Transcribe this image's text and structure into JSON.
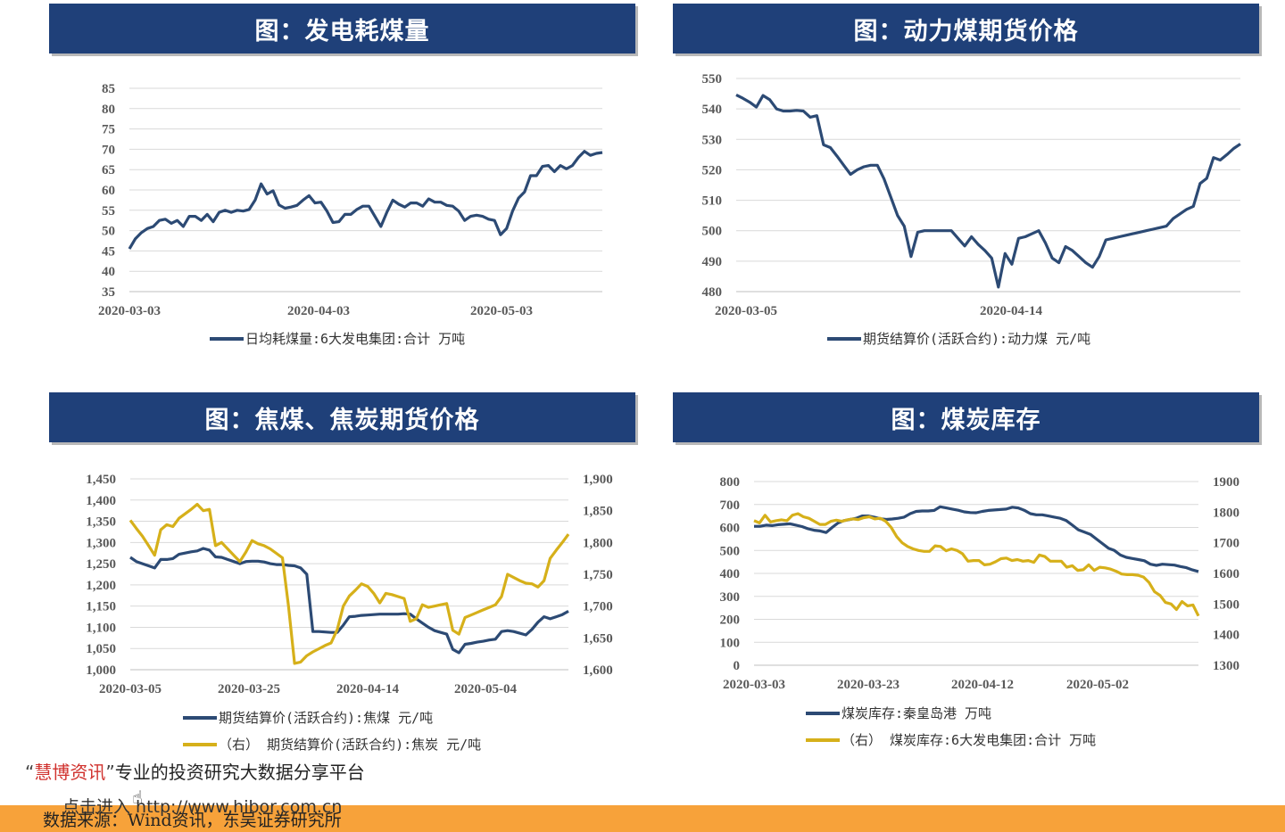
{
  "colors": {
    "header_bg": "#1f4079",
    "series_blue": "#2c4a74",
    "series_gold": "#d6b01a",
    "grid": "#d9d9d9",
    "footer": "#f7a23a"
  },
  "charts": [
    {
      "title": "图：发电耗煤量",
      "x_labels": [
        "2020-03-03",
        "2020-04-03",
        "2020-05-03"
      ],
      "y_ticks": [
        "35",
        "40",
        "45",
        "50",
        "55",
        "60",
        "65",
        "70",
        "75",
        "80",
        "85"
      ],
      "legend": [
        "日均耗煤量:6大发电集团:合计  万吨"
      ]
    },
    {
      "title": "图：动力煤期货价格",
      "x_labels": [
        "2020-03-05",
        "2020-04-14"
      ],
      "y_ticks": [
        "480",
        "490",
        "500",
        "510",
        "520",
        "530",
        "540",
        "550"
      ],
      "legend": [
        "期货结算价(活跃合约):动力煤  元/吨"
      ]
    },
    {
      "title": "图：焦煤、焦炭期货价格",
      "x_labels": [
        "2020-03-05",
        "2020-03-25",
        "2020-04-14",
        "2020-05-04"
      ],
      "y_ticks": [
        "1,000",
        "1,050",
        "1,100",
        "1,150",
        "1,200",
        "1,250",
        "1,300",
        "1,350",
        "1,400",
        "1,450"
      ],
      "y2_ticks": [
        "1,600",
        "1,650",
        "1,700",
        "1,750",
        "1,800",
        "1,850",
        "1,900"
      ],
      "legend": [
        "期货结算价(活跃合约):焦煤  元/吨",
        "（右） 期货结算价(活跃合约):焦炭  元/吨"
      ]
    },
    {
      "title": "图：煤炭库存",
      "x_labels": [
        "2020-03-03",
        "2020-03-23",
        "2020-04-12",
        "2020-05-02"
      ],
      "y_ticks": [
        "0",
        "100",
        "200",
        "300",
        "400",
        "500",
        "600",
        "700",
        "800"
      ],
      "y2_ticks": [
        "1300",
        "1400",
        "1500",
        "1600",
        "1700",
        "1800",
        "1900"
      ],
      "legend": [
        "煤炭库存:秦皇岛港  万吨",
        "（右） 煤炭库存:6大发电集团:合计  万吨"
      ]
    }
  ],
  "chart_data": [
    {
      "type": "line",
      "title": "图：发电耗煤量",
      "xlabel": "",
      "ylabel": "",
      "ylim": [
        35,
        85
      ],
      "x_range": [
        "2020-03-03",
        "2020-05-21"
      ],
      "series": [
        {
          "name": "日均耗煤量:6大发电集团:合计  万吨",
          "color": "#2c4a74",
          "x": [
            0,
            1,
            2,
            3,
            4,
            5,
            6,
            7,
            8,
            9,
            10,
            11,
            12,
            13,
            14,
            15,
            16,
            17,
            18,
            19,
            20,
            21,
            22,
            23,
            24,
            25,
            26,
            27,
            28,
            29,
            30,
            31,
            32,
            33,
            34,
            35,
            36,
            37,
            38,
            39,
            40,
            41,
            42,
            43,
            44,
            45,
            46,
            47,
            48,
            49,
            50,
            51,
            52,
            53,
            54,
            55,
            56,
            57,
            58,
            59,
            60,
            61,
            62,
            63,
            64,
            65,
            66,
            67,
            68,
            69,
            70,
            71,
            72,
            73,
            74,
            75,
            76,
            77,
            78,
            79
          ],
          "values": [
            45.5,
            48.0,
            49.5,
            50.5,
            51.0,
            52.5,
            52.8,
            51.8,
            52.5,
            51.0,
            53.5,
            53.5,
            52.5,
            54.0,
            52.2,
            54.5,
            55.0,
            54.5,
            55.0,
            54.8,
            55.2,
            57.5,
            61.5,
            59.0,
            59.8,
            56.3,
            55.5,
            55.8,
            56.2,
            57.5,
            58.6,
            56.8,
            57.0,
            54.8,
            52.0,
            52.2,
            54.0,
            54.0,
            55.2,
            56.0,
            56.0,
            53.5,
            51.0,
            54.5,
            57.5,
            56.5,
            55.8,
            56.8,
            56.8,
            56.0,
            57.8,
            57.0,
            57.0,
            56.2,
            56.0,
            54.8,
            52.5,
            53.5,
            53.8,
            53.5,
            52.8,
            52.5,
            49.0,
            50.5,
            54.8,
            58.0,
            59.5,
            63.5,
            63.5,
            65.8,
            66.0,
            64.5,
            66.0,
            65.2,
            66.0,
            68.0,
            69.5,
            68.5,
            69.0,
            69.2
          ]
        }
      ]
    },
    {
      "type": "line",
      "title": "图：动力煤期货价格",
      "xlabel": "",
      "ylabel": "",
      "ylim": [
        480,
        550
      ],
      "series": [
        {
          "name": "期货结算价(活跃合约):动力煤  元/吨",
          "color": "#2c4a74",
          "values": [
            544.6,
            543.5,
            542.2,
            540.6,
            544.4,
            543.0,
            540.0,
            539.3,
            539.3,
            539.5,
            539.3,
            537.3,
            537.8,
            528.2,
            527.3,
            524.5,
            521.5,
            518.5,
            520.0,
            521.0,
            521.5,
            521.5,
            517.0,
            511.0,
            505.0,
            501.5,
            491.5,
            499.5,
            500.0,
            500.0,
            500.0,
            500.0,
            500.0,
            497.5,
            495.0,
            498.0,
            495.5,
            493.5,
            491.0,
            481.5,
            492.5,
            489.0,
            497.5,
            498.0,
            499.0,
            500.0,
            496.0,
            491.0,
            489.5,
            494.8,
            493.5,
            491.5,
            489.5,
            488.0,
            491.5,
            497.0,
            497.5,
            498.0,
            498.5,
            499.0,
            499.5,
            500.0,
            500.5,
            501.0,
            501.5,
            504.0,
            505.5,
            507.0,
            508.0,
            515.5,
            517.2,
            524.0,
            523.2,
            525.0,
            527.0,
            528.5
          ]
        }
      ]
    },
    {
      "type": "line",
      "title": "图：焦煤、焦炭期货价格",
      "xlabel": "",
      "ylabel": "",
      "ylim": [
        1000,
        1450
      ],
      "y2lim": [
        1600,
        1900
      ],
      "series": [
        {
          "name": "期货结算价(活跃合约):焦煤  元/吨",
          "axis": "left",
          "color": "#2c4a74",
          "values": [
            1265,
            1255,
            1250,
            1245,
            1240,
            1260,
            1260,
            1262,
            1272,
            1275,
            1278,
            1280,
            1286,
            1282,
            1266,
            1265,
            1260,
            1255,
            1250,
            1255,
            1256,
            1256,
            1254,
            1250,
            1248,
            1248,
            1246,
            1245,
            1240,
            1225,
            1090,
            1090,
            1089,
            1088,
            1088,
            1105,
            1125,
            1126,
            1128,
            1129,
            1130,
            1131,
            1131,
            1131,
            1131,
            1132,
            1131,
            1120,
            1110,
            1100,
            1092,
            1088,
            1084,
            1048,
            1040,
            1060,
            1062,
            1065,
            1067,
            1070,
            1072,
            1090,
            1092,
            1090,
            1086,
            1082,
            1095,
            1112,
            1125,
            1120,
            1125,
            1130,
            1138
          ]
        },
        {
          "name": "（右） 期货结算价(活跃合约):焦炭  元/吨",
          "axis": "right",
          "color": "#d6b01a",
          "values": [
            1835,
            1822,
            1810,
            1795,
            1780,
            1820,
            1828,
            1825,
            1838,
            1845,
            1852,
            1860,
            1850,
            1852,
            1795,
            1800,
            1790,
            1780,
            1770,
            1785,
            1803,
            1798,
            1795,
            1790,
            1783,
            1776,
            1700,
            1610,
            1612,
            1622,
            1628,
            1633,
            1638,
            1642,
            1663,
            1700,
            1716,
            1725,
            1735,
            1731,
            1720,
            1705,
            1720,
            1718,
            1715,
            1712,
            1676,
            1680,
            1702,
            1698,
            1700,
            1702,
            1704,
            1662,
            1656,
            1682,
            1686,
            1690,
            1694,
            1698,
            1702,
            1715,
            1750,
            1745,
            1740,
            1736,
            1735,
            1730,
            1740,
            1775,
            1788,
            1800,
            1813
          ]
        }
      ]
    },
    {
      "type": "line",
      "title": "图：煤炭库存",
      "xlabel": "",
      "ylabel": "",
      "ylim": [
        0,
        800
      ],
      "y2lim": [
        1300,
        1900
      ],
      "series": [
        {
          "name": "煤炭库存:秦皇岛港  万吨",
          "axis": "left",
          "color": "#2c4a74",
          "values": [
            605,
            605,
            610,
            608,
            612,
            614,
            616,
            610,
            604,
            594,
            588,
            585,
            578,
            600,
            620,
            630,
            635,
            640,
            650,
            650,
            645,
            638,
            635,
            637,
            640,
            645,
            660,
            670,
            672,
            672,
            674,
            690,
            685,
            680,
            675,
            668,
            665,
            664,
            670,
            674,
            676,
            678,
            680,
            688,
            685,
            675,
            660,
            655,
            655,
            650,
            645,
            640,
            630,
            610,
            590,
            580,
            570,
            550,
            530,
            510,
            500,
            480,
            470,
            465,
            460,
            455,
            440,
            435,
            440,
            438,
            436,
            430,
            425,
            415,
            408
          ]
        },
        {
          "name": "（右） 煤炭库存:6大发电集团:合计  万吨",
          "axis": "right",
          "color": "#d6b01a",
          "values": [
            1772,
            1765,
            1790,
            1768,
            1772,
            1775,
            1772,
            1790,
            1795,
            1785,
            1780,
            1770,
            1760,
            1760,
            1770,
            1774,
            1770,
            1775,
            1778,
            1776,
            1782,
            1785,
            1778,
            1780,
            1770,
            1750,
            1720,
            1700,
            1688,
            1680,
            1675,
            1672,
            1672,
            1690,
            1688,
            1674,
            1680,
            1675,
            1664,
            1640,
            1642,
            1642,
            1628,
            1630,
            1638,
            1648,
            1650,
            1642,
            1645,
            1640,
            1642,
            1636,
            1660,
            1655,
            1640,
            1640,
            1640,
            1620,
            1625,
            1610,
            1612,
            1628,
            1610,
            1620,
            1618,
            1614,
            1607,
            1598,
            1596,
            1596,
            1594,
            1588,
            1570,
            1540,
            1528,
            1505,
            1500,
            1482,
            1508,
            1494,
            1497,
            1461
          ]
        }
      ]
    }
  ],
  "footer": {
    "source": "数据来源：Wind资讯，东吴证券研究所"
  },
  "watermark": {
    "open_quote": "“",
    "brand": "慧博资讯",
    "close_quote": "”",
    "tagline": "专业的投资研究大数据分享平台",
    "link": "点击进入 http://www.hibor.com.cn"
  }
}
